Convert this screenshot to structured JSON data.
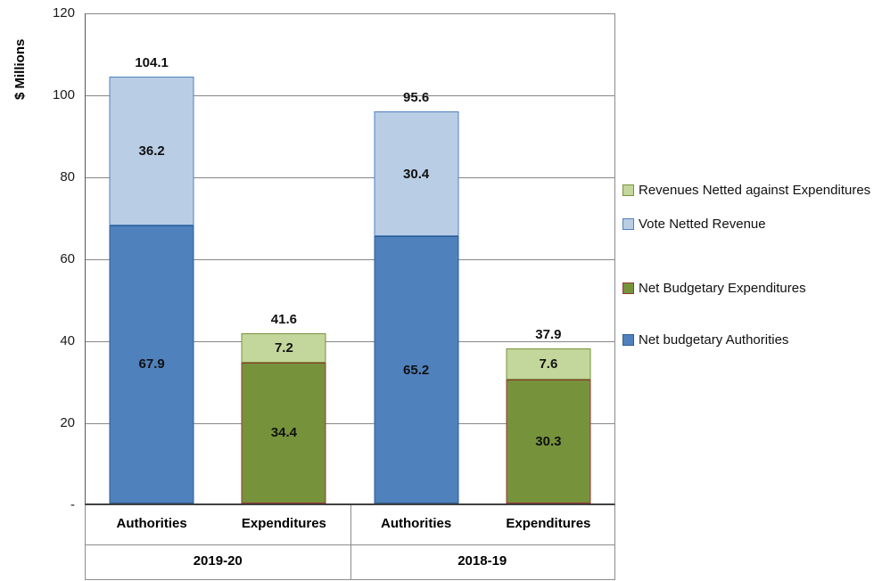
{
  "chart_data": {
    "type": "bar",
    "stacked": true,
    "title": "",
    "ylabel": "$ Millions",
    "ylim": [
      0,
      120
    ],
    "grid": true,
    "legend_position": "right",
    "yticks": [
      {
        "value": 120,
        "label": "120"
      },
      {
        "value": 100,
        "label": "100"
      },
      {
        "value": 80,
        "label": "80"
      },
      {
        "value": 60,
        "label": "60"
      },
      {
        "value": 40,
        "label": "40"
      },
      {
        "value": 20,
        "label": "20"
      },
      {
        "value": 0,
        "label": "-"
      }
    ],
    "groups": [
      {
        "label": "2019-20",
        "bars": [
          {
            "category": "Authorities",
            "total": 104.1,
            "total_label": "104.1",
            "segments": [
              {
                "series": "Net budgetary Authorities",
                "value": 67.9,
                "label": "67.9"
              },
              {
                "series": "Vote Netted Revenue",
                "value": 36.2,
                "label": "36.2"
              }
            ]
          },
          {
            "category": "Expenditures",
            "total": 41.6,
            "total_label": "41.6",
            "segments": [
              {
                "series": "Net Budgetary Expenditures",
                "value": 34.4,
                "label": "34.4"
              },
              {
                "series": "Revenues Netted against Expenditures",
                "value": 7.2,
                "label": "7.2"
              }
            ]
          }
        ]
      },
      {
        "label": "2018-19",
        "bars": [
          {
            "category": "Authorities",
            "total": 95.6,
            "total_label": "95.6",
            "segments": [
              {
                "series": "Net budgetary Authorities",
                "value": 65.2,
                "label": "65.2"
              },
              {
                "series": "Vote Netted Revenue",
                "value": 30.4,
                "label": "30.4"
              }
            ]
          },
          {
            "category": "Expenditures",
            "total": 37.9,
            "total_label": "37.9",
            "segments": [
              {
                "series": "Net Budgetary Expenditures",
                "value": 30.3,
                "label": "30.3"
              },
              {
                "series": "Revenues Netted against Expenditures",
                "value": 7.6,
                "label": "7.6"
              }
            ]
          }
        ]
      }
    ],
    "legend": [
      {
        "label": "Revenues Netted against Expenditures",
        "fill": "#c3d69b",
        "border": "#77933c"
      },
      {
        "label": "Vote Netted Revenue",
        "fill": "#b9cde5",
        "border": "#4f81bd"
      },
      {
        "label": "Net Budgetary Expenditures",
        "fill": "#76933c",
        "border": "#953735"
      },
      {
        "label": "Net budgetary Authorities",
        "fill": "#4f81bd",
        "border": "#2f5c8f"
      }
    ],
    "colors": {
      "gridline": "#878787",
      "axis": "#404040"
    }
  }
}
